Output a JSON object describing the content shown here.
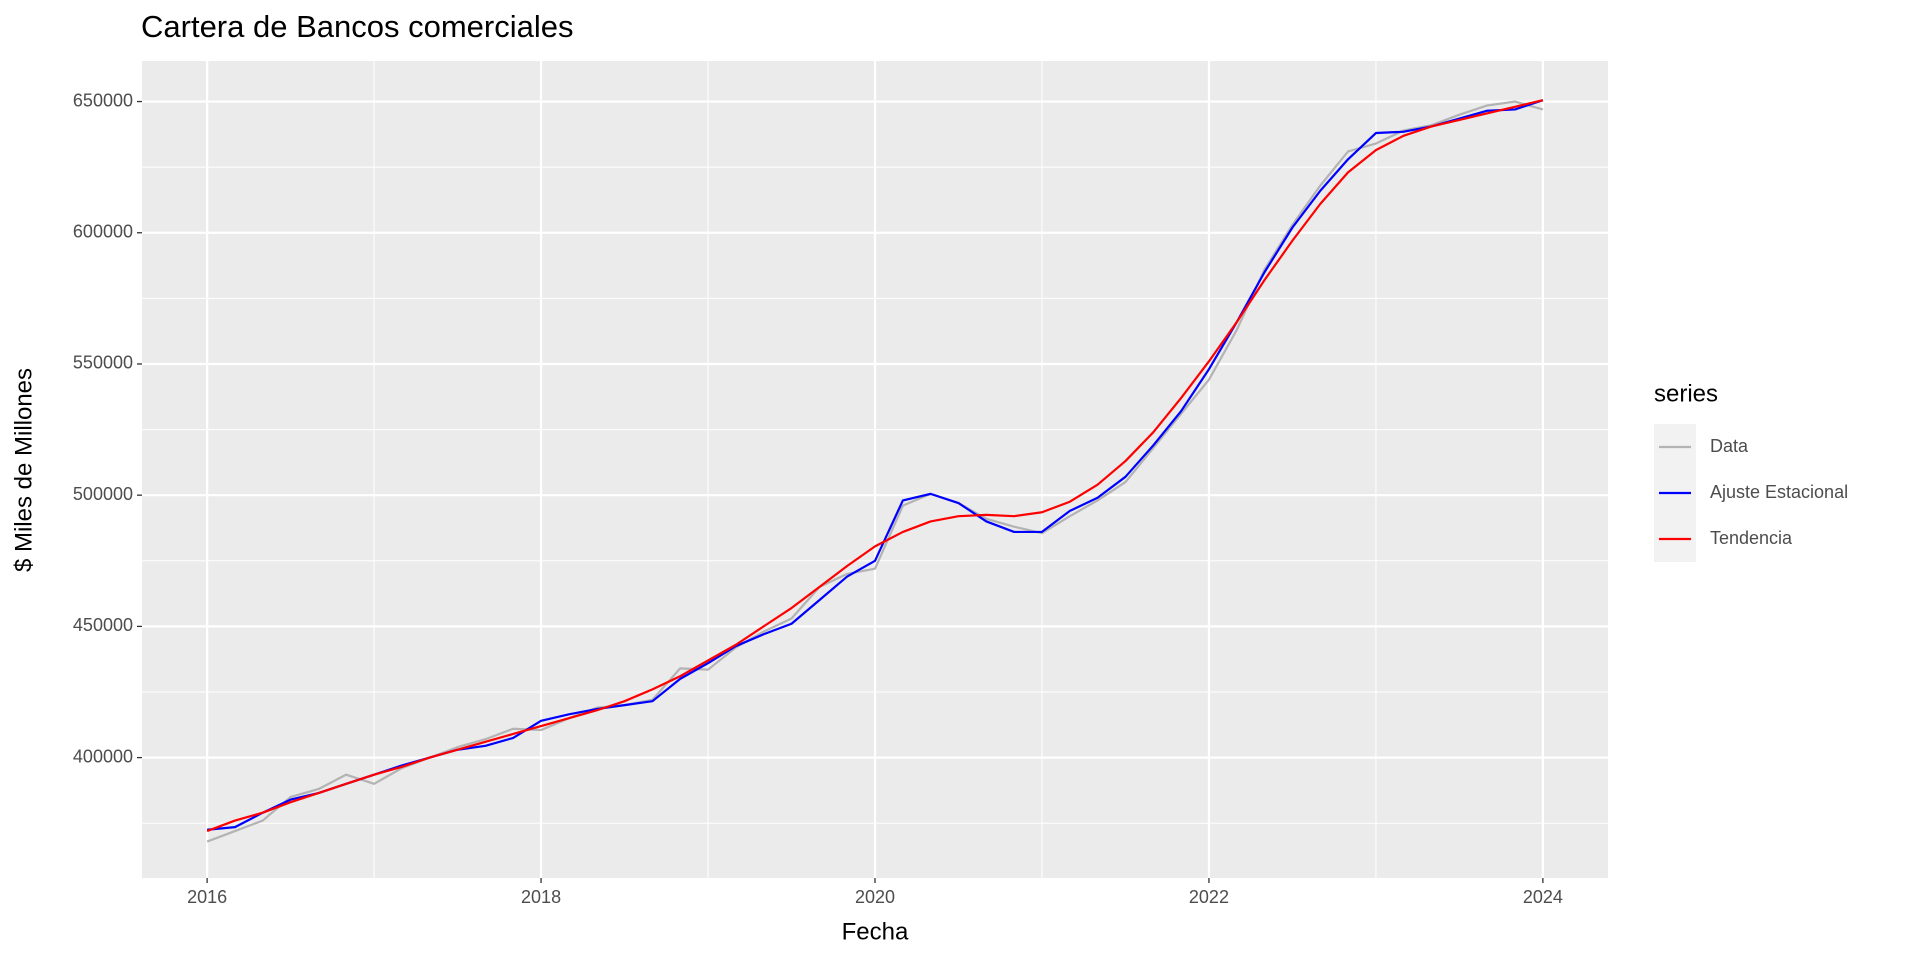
{
  "chart_data": {
    "type": "line",
    "title": "Cartera de Bancos comerciales",
    "x_label": "Fecha",
    "y_label": "$ Miles de Millones",
    "legend_title": "series",
    "legend": "right",
    "grid": true,
    "xlim": [
      2015.61,
      2024.39
    ],
    "xticks": [
      2016,
      2018,
      2020,
      2022,
      2024
    ],
    "ylim": [
      354120,
      665450
    ],
    "yticks": [
      400000,
      450000,
      500000,
      550000,
      600000,
      650000
    ],
    "x": [
      2016,
      2016.167,
      2016.333,
      2016.5,
      2016.667,
      2016.833,
      2017,
      2017.167,
      2017.333,
      2017.5,
      2017.667,
      2017.833,
      2018,
      2018.167,
      2018.333,
      2018.5,
      2018.667,
      2018.833,
      2019,
      2019.167,
      2019.333,
      2019.5,
      2019.667,
      2019.833,
      2020,
      2020.167,
      2020.333,
      2020.5,
      2020.667,
      2020.833,
      2021,
      2021.167,
      2021.333,
      2021.5,
      2021.667,
      2021.833,
      2022,
      2022.167,
      2022.333,
      2022.5,
      2022.667,
      2022.833,
      2023,
      2023.167,
      2023.333,
      2023.5,
      2023.667,
      2023.833,
      2024
    ],
    "series": [
      {
        "name": "Data",
        "color": "#b3b3b3",
        "values": [
          368000,
          372000,
          376000,
          385000,
          388000,
          393500,
          390000,
          396000,
          400000,
          404000,
          407000,
          411000,
          410500,
          415000,
          419000,
          420000,
          422000,
          434000,
          433500,
          442000,
          448000,
          453000,
          465000,
          470000,
          472000,
          496000,
          500500,
          497000,
          491000,
          488000,
          485500,
          492000,
          498000,
          505000,
          518000,
          531000,
          544000,
          563000,
          586000,
          603000,
          618000,
          631000,
          634000,
          639000,
          641000,
          645000,
          648500,
          650000,
          647000
        ]
      },
      {
        "name": "Ajuste Estacional",
        "color": "#0000ff",
        "values": [
          372500,
          373500,
          379000,
          384000,
          386500,
          390000,
          393500,
          397000,
          400000,
          403000,
          404500,
          407500,
          414000,
          416500,
          418500,
          420000,
          421500,
          430000,
          436000,
          442500,
          447000,
          451000,
          460000,
          469000,
          475000,
          498000,
          500500,
          497000,
          490000,
          486000,
          486000,
          494000,
          499000,
          507000,
          519000,
          532000,
          548000,
          566000,
          585000,
          602000,
          616000,
          628000,
          638000,
          638500,
          640500,
          643500,
          646500,
          647000,
          650500
        ]
      },
      {
        "name": "Tendencia",
        "color": "#ff0000",
        "values": [
          372000,
          376000,
          379000,
          383000,
          386500,
          390000,
          393500,
          396500,
          400000,
          403000,
          406000,
          409000,
          412000,
          415000,
          418000,
          421500,
          426000,
          431000,
          437000,
          443000,
          450000,
          457000,
          465000,
          473000,
          480500,
          486000,
          490000,
          492000,
          492500,
          492000,
          493500,
          497500,
          504000,
          513000,
          524000,
          537000,
          551000,
          566000,
          582000,
          597000,
          611000,
          623000,
          631500,
          637000,
          640500,
          643000,
          645500,
          648000,
          650500
        ]
      }
    ]
  }
}
